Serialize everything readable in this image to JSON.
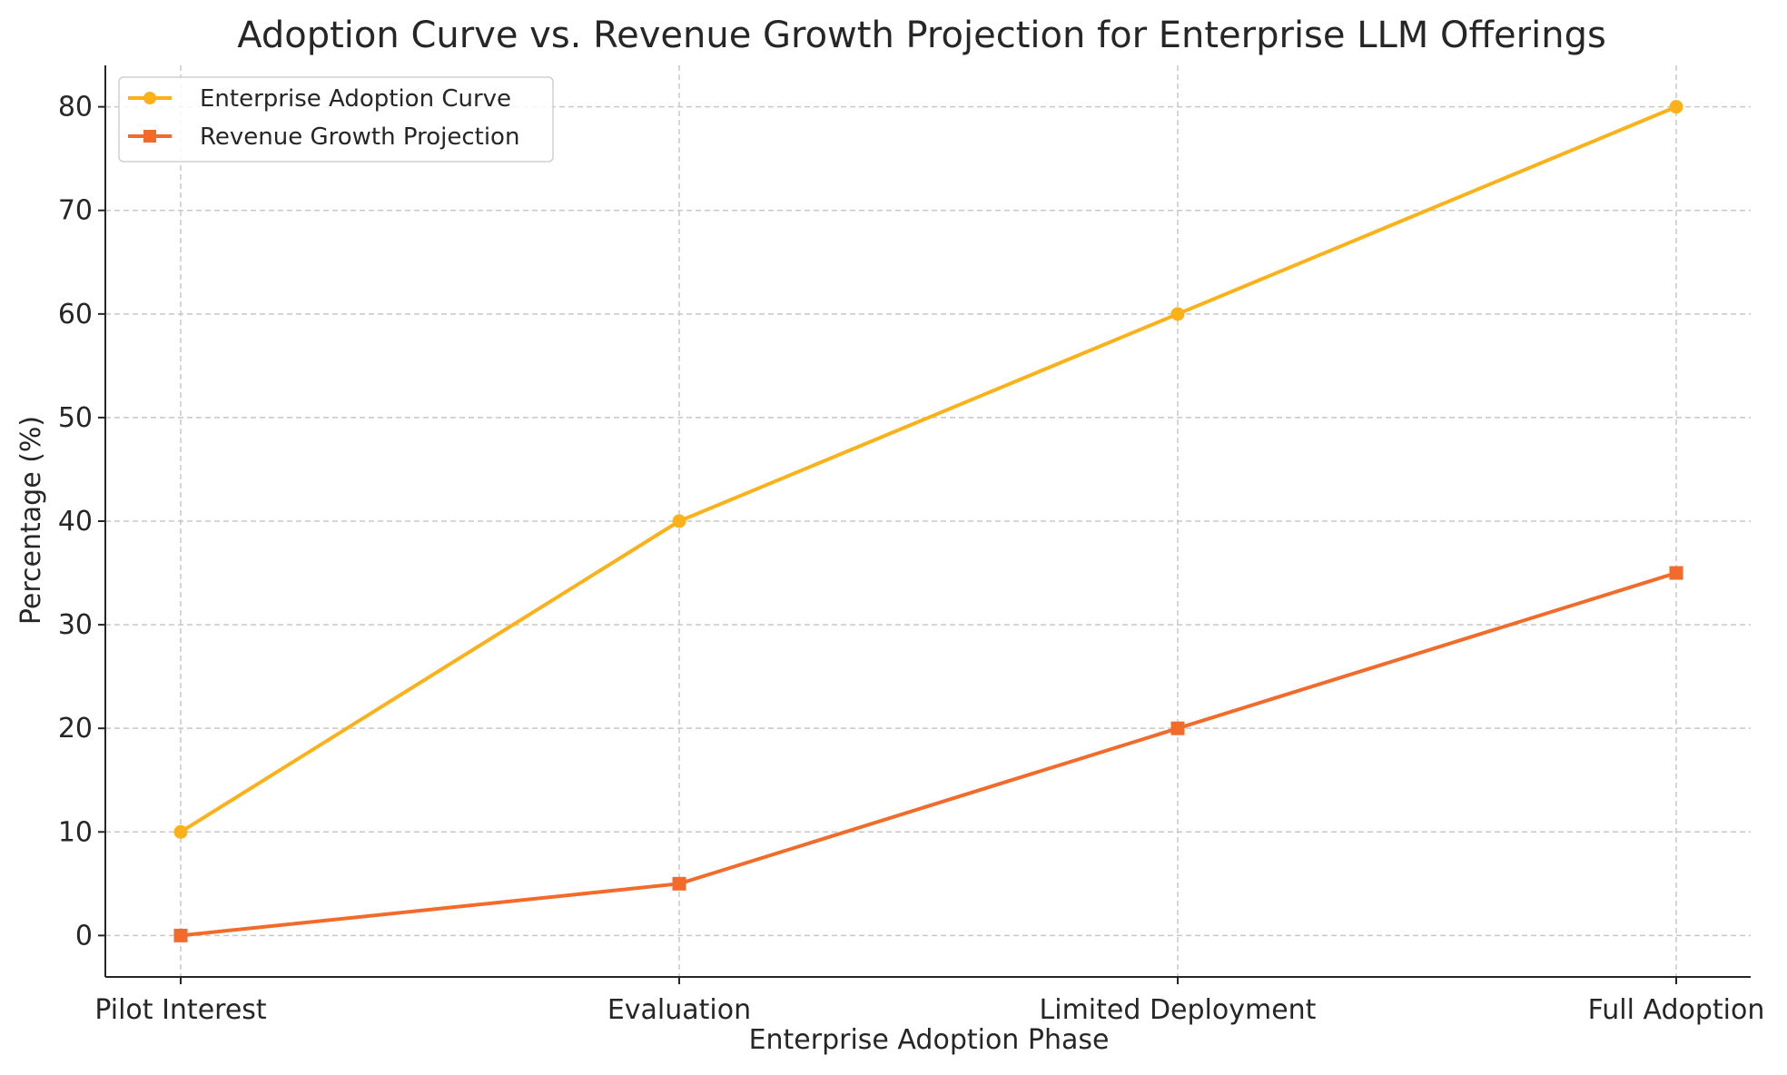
{
  "chart_data": {
    "type": "line",
    "title": "Adoption Curve vs. Revenue Growth Projection for Enterprise LLM Offerings",
    "xlabel": "Enterprise Adoption Phase",
    "ylabel": "Percentage (%)",
    "categories": [
      "Pilot Interest",
      "Evaluation",
      "Limited Deployment",
      "Full Adoption"
    ],
    "ylim": [
      -4,
      84
    ],
    "yticks": [
      0,
      10,
      20,
      30,
      40,
      50,
      60,
      70,
      80
    ],
    "grid": true,
    "legend_position": "top-left",
    "series": [
      {
        "name": "Enterprise Adoption Curve",
        "values": [
          10,
          40,
          60,
          80
        ],
        "color": "#FBB117",
        "marker": "circle"
      },
      {
        "name": "Revenue Growth Projection",
        "values": [
          0,
          5,
          20,
          35
        ],
        "color": "#F26B2A",
        "marker": "square"
      }
    ]
  }
}
